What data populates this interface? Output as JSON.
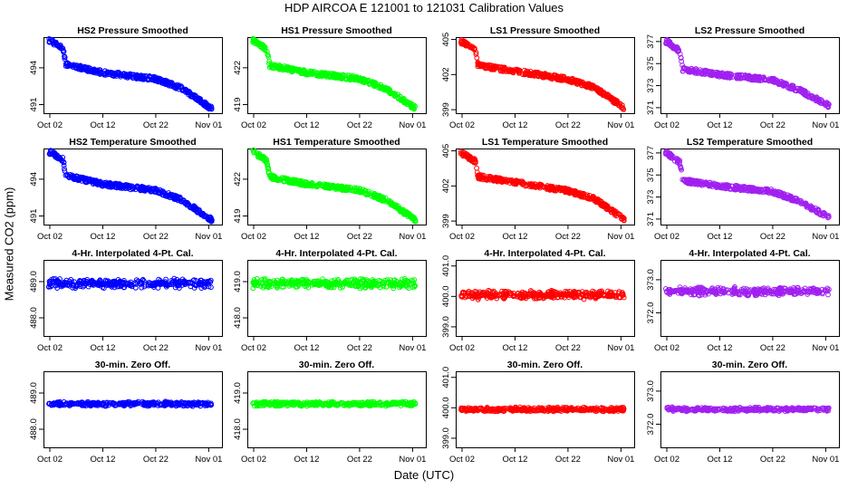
{
  "title": "HDP    AIRCOA E    121001 to 121031    Calibration Values",
  "xlabel": "Date (UTC)",
  "ylabel": "Measured CO2 (ppm)",
  "colors": {
    "HS2": "#0000ff",
    "HS1": "#00ff00",
    "LS1": "#ff0000",
    "LS2": "#a020f0"
  },
  "chart_data": [
    {
      "type": "scatter",
      "title": "HS2 Pressure Smoothed",
      "color_key": "HS2",
      "pattern": "drift",
      "yticks": [
        "491",
        "494"
      ],
      "ytick_values": [
        491,
        494
      ],
      "ylim": [
        490.3,
        496.5
      ],
      "xticks": [
        "Oct 02",
        "Oct 12",
        "Oct 22",
        "Nov 01"
      ],
      "x": [
        0,
        2.5,
        3,
        10,
        20,
        25,
        30.5
      ],
      "y": [
        496.2,
        495.6,
        494.3,
        493.6,
        493.1,
        492.3,
        490.7
      ]
    },
    {
      "type": "scatter",
      "title": "HS1 Pressure Smoothed",
      "color_key": "HS1",
      "pattern": "drift",
      "yticks": [
        "419",
        "422"
      ],
      "ytick_values": [
        419,
        422
      ],
      "ylim": [
        418.3,
        424.5
      ],
      "xticks": [
        "Oct 02",
        "Oct 12",
        "Oct 22",
        "Nov 01"
      ],
      "x": [
        0,
        2.5,
        3,
        10,
        20,
        25,
        30.5
      ],
      "y": [
        424.2,
        423.5,
        422.2,
        421.6,
        421.1,
        420.3,
        418.7
      ]
    },
    {
      "type": "scatter",
      "title": "LS1 Pressure Smoothed",
      "color_key": "LS1",
      "pattern": "drift",
      "yticks": [
        "399",
        "402",
        "405"
      ],
      "ytick_values": [
        399,
        402,
        405
      ],
      "ylim": [
        398.7,
        405.2
      ],
      "xticks": [
        "Oct 02",
        "Oct 12",
        "Oct 22",
        "Nov 01"
      ],
      "x": [
        0,
        2.5,
        3,
        10,
        20,
        25,
        30.5
      ],
      "y": [
        404.8,
        404.1,
        402.8,
        402.3,
        401.6,
        400.9,
        399.2
      ]
    },
    {
      "type": "scatter",
      "title": "LS2 Pressure Smoothed",
      "color_key": "LS2",
      "pattern": "drift",
      "yticks": [
        "371",
        "373",
        "375",
        "377"
      ],
      "ytick_values": [
        371,
        373,
        375,
        377
      ],
      "ylim": [
        370.5,
        377.4
      ],
      "xticks": [
        "Oct 02",
        "Oct 12",
        "Oct 22",
        "Nov 01"
      ],
      "x": [
        0,
        2.5,
        3,
        10,
        20,
        25,
        30.5
      ],
      "y": [
        377,
        376.1,
        374.5,
        374,
        373.5,
        372.6,
        371.2
      ]
    },
    {
      "type": "scatter",
      "title": "HS2 Temperature Smoothed",
      "color_key": "HS2",
      "pattern": "drift",
      "yticks": [
        "491",
        "494"
      ],
      "ytick_values": [
        491,
        494
      ],
      "ylim": [
        490.3,
        496.5
      ],
      "xticks": [
        "Oct 02",
        "Oct 12",
        "Oct 22",
        "Nov 01"
      ],
      "x": [
        0,
        2.5,
        3,
        10,
        20,
        25,
        30.5
      ],
      "y": [
        496.2,
        495.6,
        494.3,
        493.6,
        493.1,
        492.3,
        490.7
      ]
    },
    {
      "type": "scatter",
      "title": "HS1 Temperature Smoothed",
      "color_key": "HS1",
      "pattern": "drift",
      "yticks": [
        "419",
        "422"
      ],
      "ytick_values": [
        419,
        422
      ],
      "ylim": [
        418.3,
        424.5
      ],
      "xticks": [
        "Oct 02",
        "Oct 12",
        "Oct 22",
        "Nov 01"
      ],
      "x": [
        0,
        2.5,
        3,
        10,
        20,
        25,
        30.5
      ],
      "y": [
        424.2,
        423.5,
        422.2,
        421.6,
        421.1,
        420.3,
        418.7
      ]
    },
    {
      "type": "scatter",
      "title": "LS1 Temperature Smoothed",
      "color_key": "LS1",
      "pattern": "drift",
      "yticks": [
        "399",
        "402",
        "405"
      ],
      "ytick_values": [
        399,
        402,
        405
      ],
      "ylim": [
        398.7,
        405.2
      ],
      "xticks": [
        "Oct 02",
        "Oct 12",
        "Oct 22",
        "Nov 01"
      ],
      "x": [
        0,
        2.5,
        3,
        10,
        20,
        25,
        30.5
      ],
      "y": [
        404.8,
        404.1,
        402.8,
        402.3,
        401.6,
        400.9,
        399.2
      ]
    },
    {
      "type": "scatter",
      "title": "LS2 Temperature Smoothed",
      "color_key": "LS2",
      "pattern": "drift",
      "yticks": [
        "371",
        "373",
        "375",
        "377"
      ],
      "ytick_values": [
        371,
        373,
        375,
        377
      ],
      "ylim": [
        370.5,
        377.4
      ],
      "xticks": [
        "Oct 02",
        "Oct 12",
        "Oct 22",
        "Nov 01"
      ],
      "x": [
        0,
        2.5,
        3,
        10,
        20,
        25,
        30.5
      ],
      "y": [
        377,
        376.1,
        374.5,
        374,
        373.5,
        372.6,
        371.2
      ]
    },
    {
      "type": "scatter",
      "title": "4-Hr. Interpolated 4-Pt. Cal.",
      "color_key": "HS2",
      "pattern": "flat",
      "yticks": [
        "488.0",
        "489.0"
      ],
      "ytick_values": [
        488,
        489
      ],
      "ylim": [
        487.5,
        489.6
      ],
      "center": 488.95,
      "spread": 0.14,
      "xticks": [
        "Oct 02",
        "Oct 12",
        "Oct 22",
        "Nov 01"
      ]
    },
    {
      "type": "scatter",
      "title": "4-Hr. Interpolated 4-Pt. Cal.",
      "color_key": "HS1",
      "pattern": "flat",
      "yticks": [
        "418.0",
        "419.0"
      ],
      "ytick_values": [
        418,
        419
      ],
      "ylim": [
        417.5,
        419.6
      ],
      "center": 418.95,
      "spread": 0.14,
      "xticks": [
        "Oct 02",
        "Oct 12",
        "Oct 22",
        "Nov 01"
      ]
    },
    {
      "type": "scatter",
      "title": "4-Hr. Interpolated 4-Pt. Cal.",
      "color_key": "LS1",
      "pattern": "flat",
      "yticks": [
        "399.0",
        "400.0",
        "401.0"
      ],
      "ytick_values": [
        399,
        400,
        401
      ],
      "ylim": [
        398.7,
        401.2
      ],
      "center": 400.05,
      "spread": 0.16,
      "xticks": [
        "Oct 02",
        "Oct 12",
        "Oct 22",
        "Nov 01"
      ]
    },
    {
      "type": "scatter",
      "title": "4-Hr. Interpolated 4-Pt. Cal.",
      "color_key": "LS2",
      "pattern": "flat",
      "yticks": [
        "372.0",
        "373.0"
      ],
      "ytick_values": [
        372,
        373
      ],
      "ylim": [
        371.3,
        373.6
      ],
      "center": 372.65,
      "spread": 0.14,
      "xticks": [
        "Oct 02",
        "Oct 12",
        "Oct 22",
        "Nov 01"
      ]
    },
    {
      "type": "scatter",
      "title": "30-min. Zero Off.",
      "color_key": "HS2",
      "pattern": "flat",
      "yticks": [
        "488.0",
        "489.0"
      ],
      "ytick_values": [
        488,
        489
      ],
      "ylim": [
        487.5,
        489.6
      ],
      "center": 488.7,
      "spread": 0.07,
      "xticks": [
        "Oct 02",
        "Oct 12",
        "Oct 22",
        "Nov 01"
      ]
    },
    {
      "type": "scatter",
      "title": "30-min. Zero Off.",
      "color_key": "HS1",
      "pattern": "flat",
      "yticks": [
        "418.0",
        "419.0"
      ],
      "ytick_values": [
        418,
        419
      ],
      "ylim": [
        417.5,
        419.6
      ],
      "center": 418.7,
      "spread": 0.07,
      "xticks": [
        "Oct 02",
        "Oct 12",
        "Oct 22",
        "Nov 01"
      ]
    },
    {
      "type": "scatter",
      "title": "30-min. Zero Off.",
      "color_key": "LS1",
      "pattern": "flat",
      "yticks": [
        "399.0",
        "400.0",
        "401.0"
      ],
      "ytick_values": [
        399,
        400,
        401
      ],
      "ylim": [
        398.7,
        401.2
      ],
      "center": 399.95,
      "spread": 0.08,
      "xticks": [
        "Oct 02",
        "Oct 12",
        "Oct 22",
        "Nov 01"
      ]
    },
    {
      "type": "scatter",
      "title": "30-min. Zero Off.",
      "color_key": "LS2",
      "pattern": "flat",
      "yticks": [
        "372.0",
        "373.0"
      ],
      "ytick_values": [
        372,
        373
      ],
      "ylim": [
        371.3,
        373.6
      ],
      "center": 372.45,
      "spread": 0.07,
      "xticks": [
        "Oct 02",
        "Oct 12",
        "Oct 22",
        "Nov 01"
      ]
    }
  ]
}
